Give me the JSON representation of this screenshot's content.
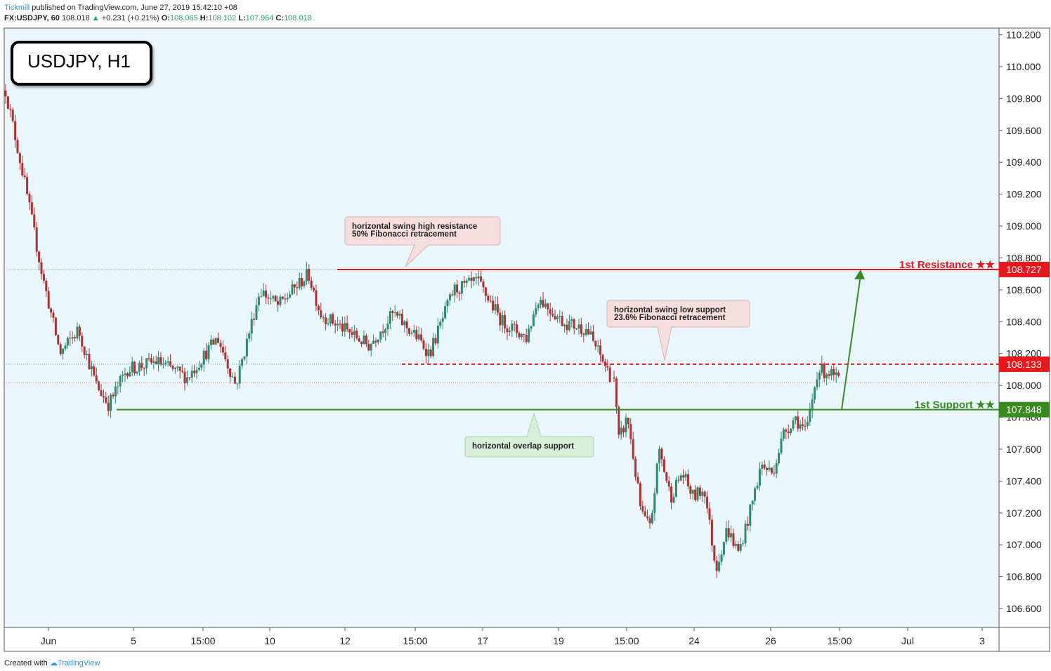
{
  "header": {
    "brand": "Tickmill",
    "published": " published on TradingView.com, June 27, 2019 15:42:10 +08",
    "symbol": "FX:USDJPY, 60",
    "last": "108.018",
    "change": "+0.231 (+0.21%)",
    "o_label": "O:",
    "o": "108.065",
    "h_label": "H:",
    "h": "108.102",
    "l_label": "L:",
    "l": "107.964",
    "c_label": "C:",
    "c": "108.018"
  },
  "title_box": "USDJPY, H1",
  "footer": {
    "created": "Created with",
    "tv": "TradingView"
  },
  "colors": {
    "background": "#e9f7fd",
    "resistance": "#e8171b",
    "support": "#3a8a1f",
    "candle_up": "#2d8a6a",
    "candle_down": "#b03030",
    "arrow": "#3a8a1f"
  },
  "chart_data": {
    "type": "candlestick",
    "ylim": [
      106.5,
      110.25
    ],
    "y_ticks": [
      "110.200",
      "110.000",
      "109.800",
      "109.600",
      "109.400",
      "109.200",
      "109.000",
      "108.800",
      "108.600",
      "108.400",
      "108.200",
      "108.000",
      "107.800",
      "107.600",
      "107.400",
      "107.200",
      "107.000",
      "106.800",
      "106.600"
    ],
    "x_ticks": [
      "Jun",
      "5",
      "15:00",
      "10",
      "12",
      "15:00",
      "17",
      "19",
      "15:00",
      "24",
      "26",
      "15:00",
      "Jul",
      "3"
    ],
    "price_path": [
      [
        0,
        109.85
      ],
      [
        0.03,
        109.3
      ],
      [
        0.06,
        108.7
      ],
      [
        0.09,
        108.2
      ],
      [
        0.12,
        108.35
      ],
      [
        0.15,
        108.0
      ],
      [
        0.17,
        107.88
      ],
      [
        0.2,
        108.1
      ],
      [
        0.25,
        108.15
      ],
      [
        0.3,
        108.05
      ],
      [
        0.35,
        108.3
      ],
      [
        0.38,
        108.0
      ],
      [
        0.42,
        108.6
      ],
      [
        0.45,
        108.5
      ],
      [
        0.5,
        108.7
      ],
      [
        0.52,
        108.45
      ],
      [
        0.56,
        108.35
      ],
      [
        0.6,
        108.25
      ],
      [
        0.64,
        108.45
      ],
      [
        0.68,
        108.3
      ],
      [
        0.7,
        108.2
      ],
      [
        0.74,
        108.6
      ],
      [
        0.78,
        108.65
      ],
      [
        0.82,
        108.4
      ],
      [
        0.86,
        108.3
      ],
      [
        0.88,
        108.55
      ],
      [
        0.92,
        108.4
      ],
      [
        0.96,
        108.35
      ],
      [
        1.0,
        108.05
      ]
    ],
    "price_path2": [
      [
        0,
        108.05
      ],
      [
        0.02,
        107.65
      ],
      [
        0.06,
        107.8
      ],
      [
        0.12,
        107.2
      ],
      [
        0.16,
        107.1
      ],
      [
        0.2,
        107.6
      ],
      [
        0.25,
        107.3
      ],
      [
        0.3,
        107.45
      ],
      [
        0.35,
        107.3
      ],
      [
        0.4,
        107.35
      ],
      [
        0.45,
        106.85
      ],
      [
        0.5,
        107.1
      ],
      [
        0.55,
        106.95
      ],
      [
        0.6,
        107.2
      ],
      [
        0.65,
        107.5
      ],
      [
        0.7,
        107.45
      ],
      [
        0.75,
        107.7
      ],
      [
        0.8,
        107.8
      ],
      [
        0.85,
        107.7
      ],
      [
        0.9,
        108.1
      ],
      [
        0.95,
        108.08
      ],
      [
        1.0,
        108.02
      ]
    ],
    "levels": [
      {
        "name": "1st Resistance ★★",
        "value": 108.727,
        "label": "108.727"
      },
      {
        "name": "1st Support ★★",
        "value": 107.848,
        "label": "107.848"
      },
      {
        "value": 108.133,
        "label": "108.133"
      }
    ],
    "annotations": [
      {
        "line1": "horizontal swing high resistance",
        "line2": "50% Fibonacci retracement"
      },
      {
        "line1": "horizontal swing low support",
        "line2": "23.6% Fibonacci retracement"
      },
      {
        "line1": "horizontal overlap support",
        "line2": ""
      }
    ],
    "current_price": 108.018
  }
}
